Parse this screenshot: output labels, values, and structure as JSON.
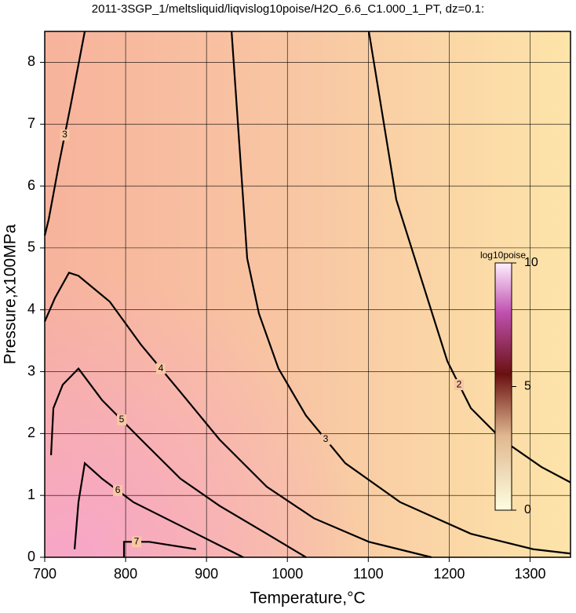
{
  "chart_data": {
    "type": "contour",
    "title": "2011-3SGP_1/meltsliquid/liqvislog10poise/H2O_6.6_C1.000_1_PT, dz=0.1:",
    "xlabel": "Temperature,°C",
    "ylabel": "Pressure,x100MPa",
    "xlim": [
      700,
      1350
    ],
    "ylim": [
      0,
      8.5
    ],
    "xticks": [
      700,
      800,
      900,
      1000,
      1100,
      1200,
      1300
    ],
    "yticks": [
      0,
      1,
      2,
      3,
      4,
      5,
      6,
      7,
      8
    ],
    "grid": true,
    "colorbar_label": "log10poise",
    "clim": [
      0,
      10
    ],
    "cticks": [
      0,
      5,
      10
    ],
    "contours": [
      {
        "level": 2,
        "x": [
          1100.7,
          1134.6,
          1173,
          1197.7,
          1226.8,
          1265.6,
          1314,
          1350
        ],
        "y": [
          8.5,
          5.78,
          4.19,
          3.17,
          2.41,
          1.9,
          1.46,
          1.21
        ]
      },
      {
        "level": 3,
        "x": [
          931,
          950.3,
          964.8,
          989,
          1023,
          1071.6,
          1139.5,
          1226.8,
          1304,
          1350
        ],
        "y": [
          8.5,
          4.83,
          3.94,
          3.05,
          2.29,
          1.52,
          0.89,
          0.38,
          0.13,
          0.06
        ]
      },
      {
        "level": 3,
        "x": [
          749.5,
          732,
          717.5,
          704.9,
          700
        ],
        "y": [
          8.5,
          7.3,
          6.35,
          5.46,
          5.2
        ]
      },
      {
        "level": 4,
        "x": [
          700,
          712.6,
          730,
          741.7,
          780.5,
          819.3,
          867.8,
          916.3,
          974.5,
          1032.8,
          1100.7,
          1178
        ],
        "y": [
          3.81,
          4.19,
          4.6,
          4.55,
          4.13,
          3.43,
          2.67,
          1.9,
          1.14,
          0.63,
          0.25,
          0
        ]
      },
      {
        "level": 5,
        "x": [
          707.8,
          710.7,
          722.3,
          741.7,
          770.9,
          819.3,
          867.8,
          916.3,
          974.5,
          1023
        ],
        "y": [
          1.65,
          2.41,
          2.79,
          3.05,
          2.54,
          1.9,
          1.27,
          0.83,
          0.38,
          0
        ]
      },
      {
        "level": 6,
        "x": [
          736.9,
          741.7,
          749.5,
          770.9,
          809.7,
          867.8,
          916.3,
          945.4
        ],
        "y": [
          0.13,
          0.89,
          1.52,
          1.27,
          0.89,
          0.51,
          0.19,
          0
        ]
      },
      {
        "level": 7,
        "x": [
          798,
          798,
          829,
          887
        ],
        "y": [
          0,
          0.25,
          0.25,
          0.13
        ]
      }
    ]
  }
}
